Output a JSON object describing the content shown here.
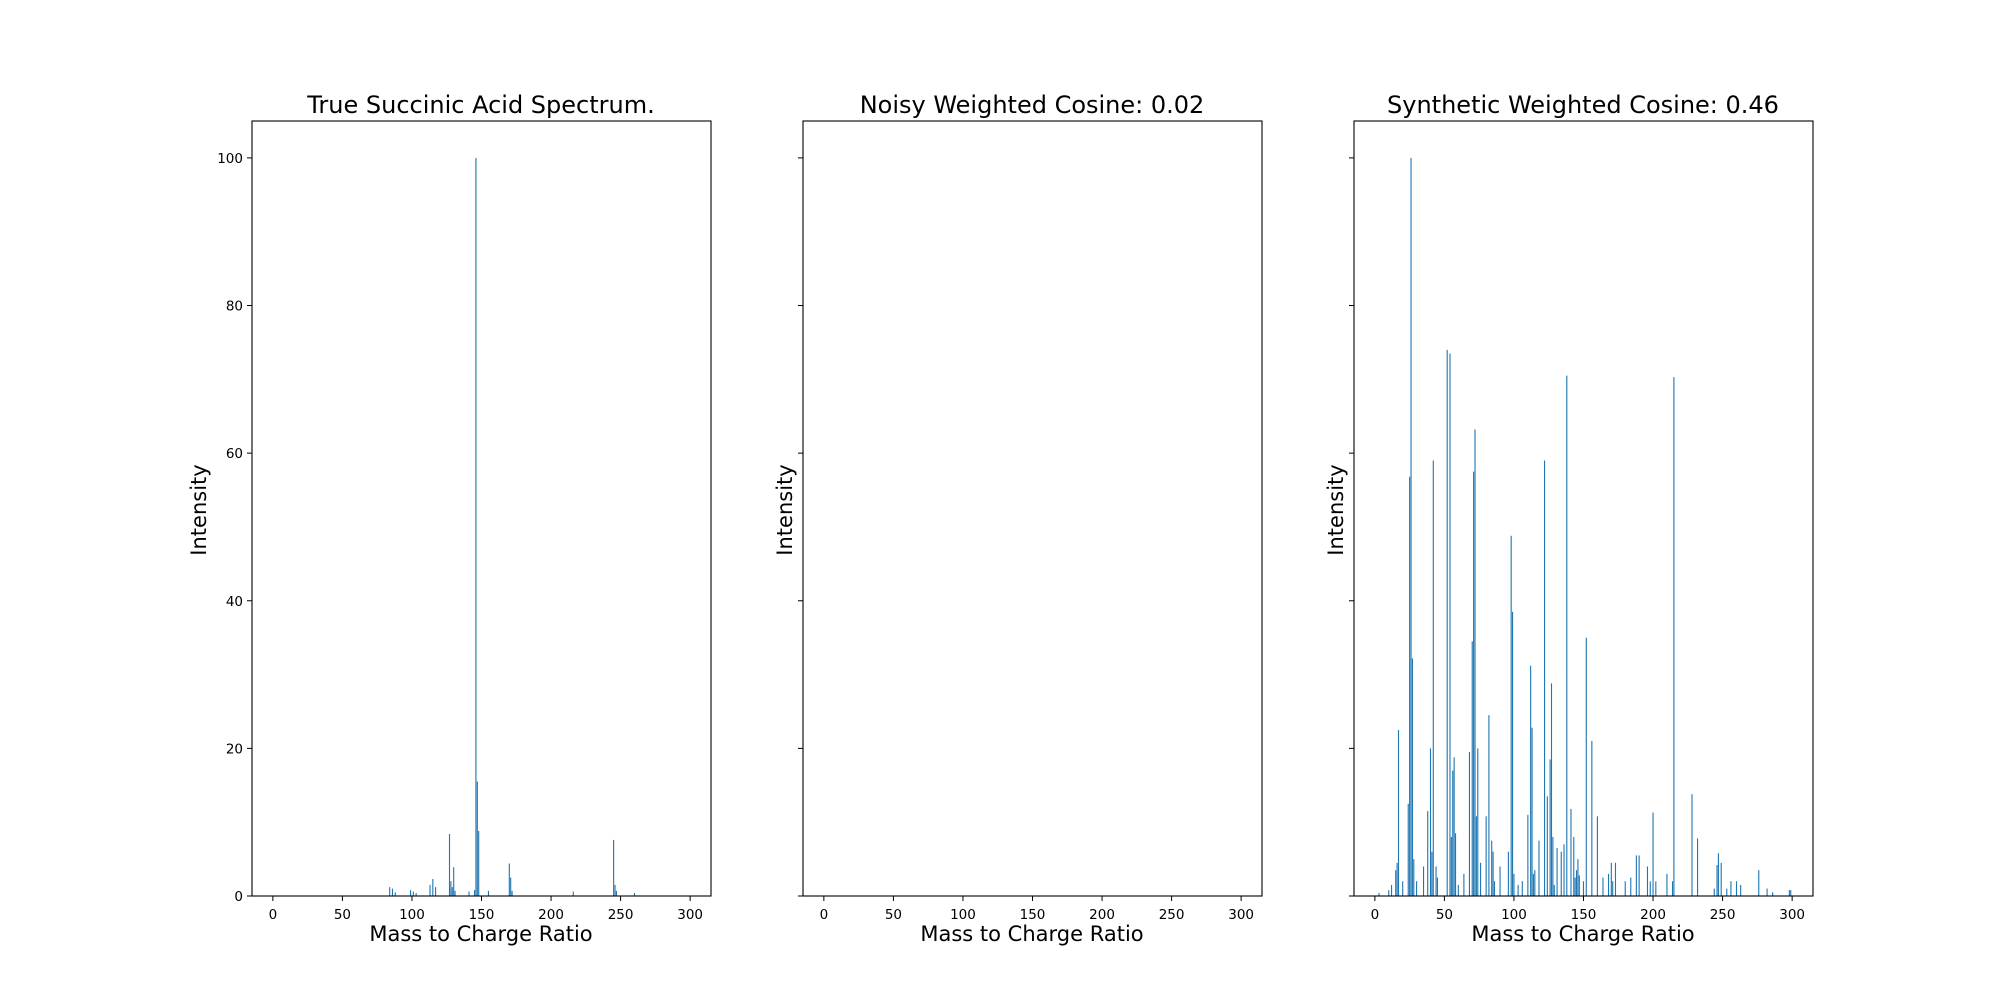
{
  "chart_data": [
    {
      "type": "bar",
      "title": "True Succinic Acid Spectrum.",
      "xlabel": "Mass to Charge Ratio",
      "ylabel": "Intensity",
      "xlim": [
        -15,
        315
      ],
      "ylim": [
        0,
        105
      ],
      "xticks": [
        "0",
        "50",
        "100",
        "150",
        "200",
        "250",
        "300"
      ],
      "yticks": [
        "0",
        "20",
        "40",
        "60",
        "80",
        "100"
      ],
      "bar_color": "#1f77b4",
      "grid": false,
      "x": [
        84,
        86,
        88,
        99,
        101,
        103,
        113,
        115,
        117,
        127,
        128,
        129,
        130,
        131,
        141,
        145,
        146,
        147,
        148,
        155,
        170,
        171,
        172,
        216,
        245,
        246,
        247,
        260
      ],
      "values": [
        1.2,
        1.0,
        0.5,
        0.8,
        0.6,
        0.4,
        1.5,
        2.3,
        1.2,
        8.4,
        2.0,
        1.2,
        3.9,
        0.7,
        0.6,
        0.8,
        100,
        15.5,
        8.8,
        0.7,
        4.4,
        2.5,
        0.7,
        0.6,
        7.6,
        1.5,
        0.7,
        0.4
      ]
    },
    {
      "type": "bar",
      "title": "Noisy Weighted Cosine: 0.02",
      "xlabel": "Mass to Charge Ratio",
      "ylabel": "Intensity",
      "xlim": [
        -15,
        315
      ],
      "ylim": [
        0,
        105
      ],
      "xticks": [
        "0",
        "50",
        "100",
        "150",
        "200",
        "250",
        "300"
      ],
      "bar_color": "#1f77b4",
      "grid": false,
      "x": [],
      "values": []
    },
    {
      "type": "bar",
      "title": "Synthetic Weighted Cosine: 0.46",
      "xlabel": "Mass to Charge Ratio",
      "ylabel": "Intensity",
      "xlim": [
        -15,
        315
      ],
      "ylim": [
        0,
        105
      ],
      "xticks": [
        "0",
        "50",
        "100",
        "150",
        "200",
        "250",
        "300"
      ],
      "bar_color": "#1f77b4",
      "grid": false,
      "x": [
        3,
        10,
        12,
        15,
        16,
        17,
        20,
        24,
        25,
        26,
        27,
        28,
        30,
        35,
        38,
        40,
        41,
        42,
        44,
        45,
        52,
        54,
        55,
        56,
        57,
        58,
        60,
        64,
        68,
        70,
        71,
        72,
        73,
        74,
        76,
        80,
        82,
        84,
        85,
        86,
        90,
        96,
        98,
        99,
        100,
        103,
        106,
        110,
        112,
        113,
        114,
        115,
        118,
        122,
        124,
        126,
        127,
        128,
        129,
        131,
        134,
        136,
        138,
        141,
        143,
        144,
        145,
        146,
        147,
        150,
        152,
        156,
        160,
        164,
        168,
        170,
        171,
        173,
        180,
        184,
        188,
        190,
        196,
        198,
        200,
        202,
        210,
        214,
        215,
        228,
        232,
        244,
        246,
        247,
        249,
        253,
        256,
        260,
        263,
        276,
        282,
        286,
        298,
        299
      ],
      "values": [
        0.4,
        0.8,
        1.5,
        3.5,
        4.5,
        22.5,
        2.0,
        12.5,
        56.8,
        100,
        32.2,
        5.0,
        2.0,
        4.0,
        11.5,
        20.0,
        6.0,
        59.0,
        4.0,
        2.5,
        74.0,
        73.5,
        8.0,
        17.0,
        18.8,
        8.5,
        1.5,
        3.0,
        19.5,
        34.5,
        57.5,
        63.2,
        10.8,
        20.0,
        4.5,
        10.8,
        24.5,
        7.5,
        6.0,
        2.0,
        4.0,
        6.0,
        48.8,
        38.5,
        3.0,
        1.5,
        2.0,
        11.0,
        31.2,
        22.8,
        3.0,
        3.5,
        7.5,
        59.0,
        13.5,
        18.5,
        28.8,
        8.0,
        1.5,
        6.5,
        6.0,
        7.0,
        70.5,
        11.8,
        8.0,
        2.5,
        3.5,
        5.0,
        2.8,
        2.0,
        35.0,
        21.0,
        10.8,
        2.5,
        3.0,
        4.5,
        2.0,
        4.5,
        2.0,
        2.5,
        5.5,
        5.5,
        4.0,
        2.0,
        11.3,
        2.0,
        3.0,
        2.0,
        70.3,
        13.8,
        7.8,
        1.0,
        4.2,
        5.8,
        4.5,
        1.0,
        2.0,
        2.0,
        1.5,
        3.5,
        1.0,
        0.5,
        0.8,
        0.8
      ]
    }
  ]
}
